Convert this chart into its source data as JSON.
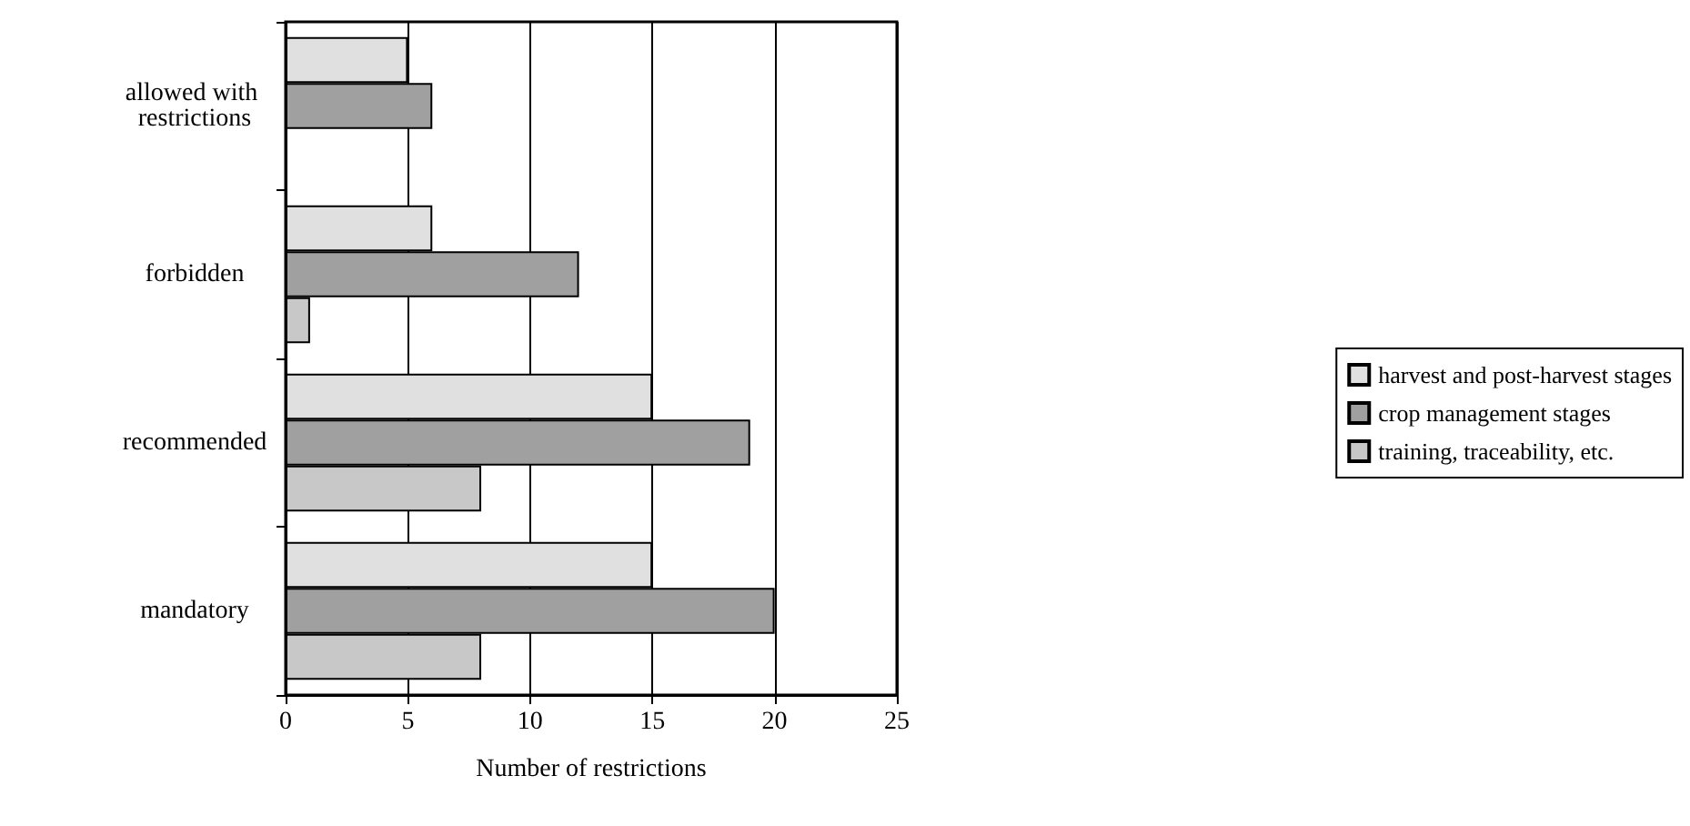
{
  "chart_data": {
    "type": "bar",
    "orientation": "horizontal",
    "xlabel": "Number of restrictions",
    "categories": [
      "allowed with restrictions",
      "forbidden",
      "recommended",
      "mandatory"
    ],
    "series": [
      {
        "name": "harvest and post-harvest stages",
        "color": "#e0e0e0",
        "values": [
          5,
          6,
          15,
          15
        ]
      },
      {
        "name": "crop management stages",
        "color": "#a0a0a0",
        "values": [
          6,
          12,
          19,
          20
        ]
      },
      {
        "name": "training, traceability, etc.",
        "color": "#c8c8c8",
        "values": [
          null,
          1,
          8,
          8
        ]
      }
    ],
    "xlim": [
      0,
      25
    ],
    "xticks": [
      0,
      5,
      10,
      15,
      20,
      25
    ],
    "grid": "x",
    "legend": "right"
  }
}
